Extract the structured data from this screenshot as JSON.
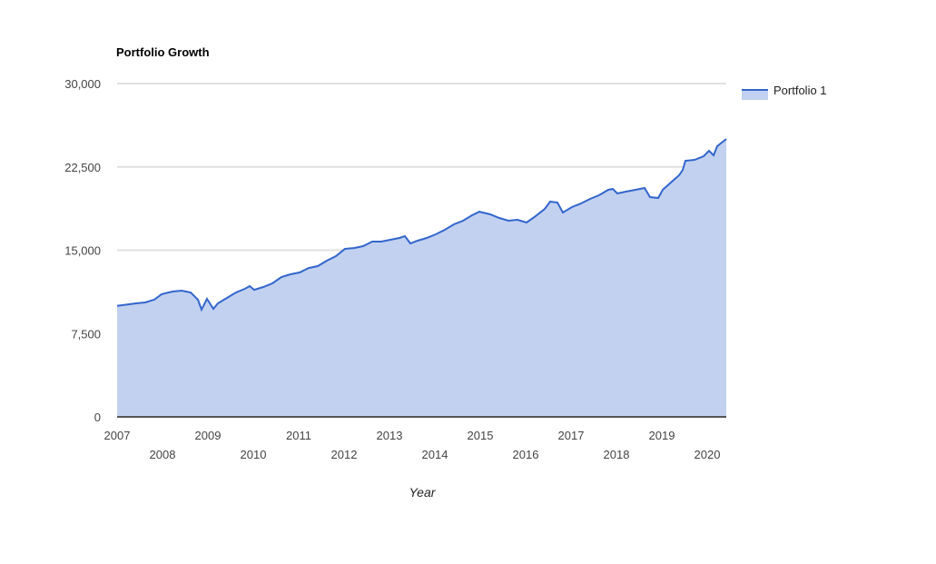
{
  "chart_data": {
    "type": "area",
    "title": "Portfolio Growth",
    "xlabel": "Year",
    "ylabel": "",
    "ylim": [
      0,
      30000
    ],
    "xlim": [
      2007,
      2020.42
    ],
    "yticks": [
      "0",
      "7,500",
      "15,000",
      "22,500",
      "30,000"
    ],
    "ytick_values": [
      0,
      7500,
      15000,
      22500,
      30000
    ],
    "xticks": [
      "2007",
      "2008",
      "2009",
      "2010",
      "2011",
      "2012",
      "2013",
      "2014",
      "2015",
      "2016",
      "2017",
      "2018",
      "2019",
      "2020"
    ],
    "grid": true,
    "legend_position": "right",
    "colors": {
      "line": "#3366cc",
      "fill": "#c2d1f0",
      "grid": "#e0e0e0",
      "baseline": "#555555"
    },
    "series": [
      {
        "name": "Portfolio 1",
        "x": [
          2007.0,
          2007.42,
          2007.62,
          2007.82,
          2007.98,
          2008.22,
          2008.42,
          2008.62,
          2008.78,
          2008.86,
          2008.98,
          2009.12,
          2009.22,
          2009.42,
          2009.62,
          2009.82,
          2009.92,
          2010.02,
          2010.22,
          2010.42,
          2010.62,
          2010.82,
          2011.02,
          2011.22,
          2011.42,
          2011.62,
          2011.82,
          2012.02,
          2012.22,
          2012.42,
          2012.62,
          2012.82,
          2013.02,
          2013.22,
          2013.34,
          2013.46,
          2013.62,
          2013.82,
          2014.02,
          2014.22,
          2014.42,
          2014.62,
          2014.82,
          2014.98,
          2015.22,
          2015.42,
          2015.62,
          2015.82,
          2016.02,
          2016.22,
          2016.42,
          2016.54,
          2016.7,
          2016.82,
          2017.02,
          2017.22,
          2017.42,
          2017.62,
          2017.82,
          2017.92,
          2018.02,
          2018.22,
          2018.42,
          2018.62,
          2018.74,
          2018.92,
          2019.02,
          2019.22,
          2019.38,
          2019.46,
          2019.52,
          2019.72,
          2019.92,
          2020.04,
          2020.14,
          2020.22,
          2020.42
        ],
        "values": [
          10000,
          10220,
          10300,
          10550,
          11040,
          11280,
          11360,
          11200,
          10550,
          9650,
          10630,
          9730,
          10220,
          10710,
          11200,
          11530,
          11770,
          11440,
          11690,
          12020,
          12590,
          12830,
          13000,
          13400,
          13570,
          14060,
          14470,
          15120,
          15200,
          15370,
          15780,
          15780,
          15940,
          16100,
          16270,
          15610,
          15860,
          16100,
          16430,
          16840,
          17330,
          17660,
          18150,
          18470,
          18230,
          17900,
          17660,
          17740,
          17490,
          18070,
          18720,
          19370,
          19290,
          18390,
          18880,
          19210,
          19620,
          19950,
          20440,
          20520,
          20110,
          20280,
          20440,
          20600,
          19780,
          19700,
          20440,
          21170,
          21740,
          22230,
          23050,
          23130,
          23460,
          23950,
          23540,
          24360,
          25010
        ]
      }
    ]
  }
}
